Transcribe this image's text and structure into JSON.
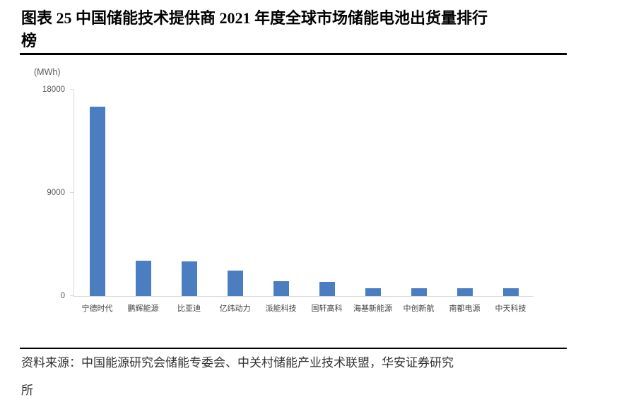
{
  "figure": {
    "title_line1": "图表 25 中国储能技术提供商 2021 年度全球市场储能电池出货量排行",
    "title_line2": "榜"
  },
  "chart_data": {
    "type": "bar",
    "title": "中国储能技术提供商2021年度全球市场储能电池出货量排行榜",
    "unit_label": "(MWh)",
    "categories": [
      "宁德时代",
      "鹏辉能源",
      "比亚迪",
      "亿纬动力",
      "派能科技",
      "国轩高科",
      "海基新能源",
      "中创新航",
      "南都电源",
      "中天科技"
    ],
    "values": [
      16500,
      3100,
      3000,
      2250,
      1300,
      1250,
      700,
      680,
      650,
      680
    ],
    "xlabel": "",
    "ylabel": "",
    "ylim": [
      0,
      18000
    ],
    "y_ticks": [
      0,
      9000,
      18000
    ],
    "grid": false,
    "legend": false,
    "bar_color": "#4a7ec1",
    "axis_color": "#d9d9d9",
    "tick_label_color": "#595959",
    "category_label_color": "#3f3f3f"
  },
  "source": {
    "line1": "资料来源：中国能源研究会储能专委会、中关村储能产业技术联盟，华安证券研究",
    "line2": "所"
  }
}
